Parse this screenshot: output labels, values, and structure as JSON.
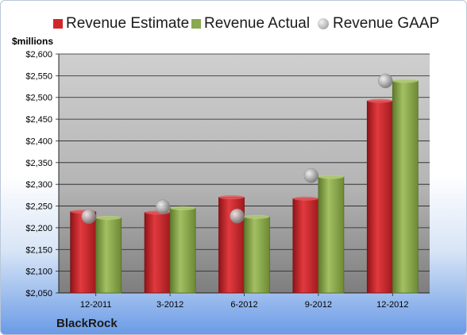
{
  "chart_data": {
    "type": "bar",
    "ylabel": "$millions",
    "footer": "BlackRock",
    "categories": [
      "12-2011",
      "3-2012",
      "6-2012",
      "9-2012",
      "12-2012"
    ],
    "series": [
      {
        "name": "Revenue Estimate",
        "kind": "bar",
        "color": "#d0262b",
        "values": [
          2237,
          2235,
          2270,
          2267,
          2492
        ]
      },
      {
        "name": "Revenue Actual",
        "kind": "bar",
        "color": "#8aa84e",
        "values": [
          2223,
          2245,
          2225,
          2317,
          2538
        ]
      },
      {
        "name": "Revenue GAAP",
        "kind": "marker",
        "color": "#a6a6a6",
        "values": [
          2226,
          2248,
          2227,
          2320,
          2538
        ]
      }
    ],
    "ylim": [
      2050,
      2600
    ],
    "yticks": [
      2050,
      2100,
      2150,
      2200,
      2250,
      2300,
      2350,
      2400,
      2450,
      2500,
      2550,
      2600
    ],
    "ytick_labels": [
      "$2,050",
      "$2,100",
      "$2,150",
      "$2,200",
      "$2,250",
      "$2,300",
      "$2,350",
      "$2,400",
      "$2,450",
      "$2,500",
      "$2,550",
      "$2,600"
    ],
    "grid": true,
    "legend": "top"
  }
}
